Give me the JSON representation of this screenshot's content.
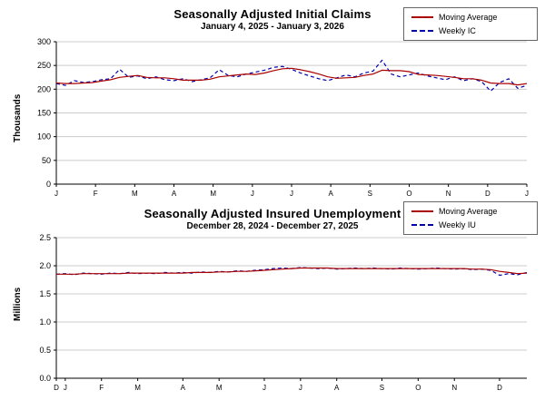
{
  "chart_data": [
    {
      "type": "line",
      "title": "Seasonally Adjusted Initial Claims",
      "subtitle": "January 4, 2025 - January 3, 2026",
      "ylabel": "Thousands",
      "ylim": [
        0,
        300
      ],
      "y_ticks": [
        0,
        50,
        100,
        150,
        200,
        250,
        300
      ],
      "y_tick_labels": [
        "0",
        "50",
        "100",
        "150",
        "200",
        "250",
        "300"
      ],
      "grid": true,
      "legend_position": "top-right",
      "x_ticks": [
        {
          "label": "J",
          "pos": 0.0
        },
        {
          "label": "F",
          "pos": 0.0833
        },
        {
          "label": "M",
          "pos": 0.1667
        },
        {
          "label": "A",
          "pos": 0.25
        },
        {
          "label": "M",
          "pos": 0.3333
        },
        {
          "label": "J",
          "pos": 0.4167
        },
        {
          "label": "J",
          "pos": 0.5
        },
        {
          "label": "A",
          "pos": 0.5833
        },
        {
          "label": "S",
          "pos": 0.6667
        },
        {
          "label": "O",
          "pos": 0.75
        },
        {
          "label": "N",
          "pos": 0.8333
        },
        {
          "label": "D",
          "pos": 0.9167
        },
        {
          "label": "J",
          "pos": 1.0
        }
      ],
      "series": [
        {
          "name": "Moving Average",
          "style": "solid",
          "color": "#aa0000",
          "values": [
            213,
            212,
            212,
            213,
            214,
            217,
            220,
            225,
            227,
            229,
            225,
            224,
            224,
            222,
            219,
            219,
            219,
            221,
            226,
            228,
            230,
            232,
            231,
            234,
            239,
            243,
            244,
            241,
            237,
            232,
            226,
            223,
            224,
            225,
            229,
            232,
            240,
            239,
            239,
            237,
            231,
            230,
            229,
            227,
            225,
            222,
            222,
            219,
            213,
            212,
            212,
            209,
            212
          ]
        },
        {
          "name": "Weekly IC",
          "style": "dashed",
          "color": "#0000aa",
          "values": [
            212,
            208,
            218,
            214,
            216,
            220,
            222,
            242,
            225,
            228,
            222,
            226,
            220,
            218,
            222,
            216,
            220,
            224,
            241,
            229,
            226,
            232,
            236,
            240,
            246,
            248,
            242,
            234,
            228,
            222,
            218,
            224,
            230,
            226,
            234,
            238,
            261,
            232,
            226,
            230,
            234,
            228,
            224,
            220,
            226,
            218,
            222,
            216,
            196,
            214,
            222,
            202,
            208
          ]
        }
      ]
    },
    {
      "type": "line",
      "title": "Seasonally Adjusted Insured Unemployment",
      "subtitle": "December 28, 2024 - December 27, 2025",
      "ylabel": "Millions",
      "ylim": [
        0,
        2.5
      ],
      "y_ticks": [
        0,
        0.5,
        1.0,
        1.5,
        2.0,
        2.5
      ],
      "y_tick_labels": [
        "0.0",
        "0.5",
        "1.0",
        "1.5",
        "2.0",
        "2.5"
      ],
      "grid": true,
      "legend_position": "top-right",
      "x_ticks": [
        {
          "label": "D",
          "pos": 0.0
        },
        {
          "label": "J",
          "pos": 0.019
        },
        {
          "label": "F",
          "pos": 0.096
        },
        {
          "label": "M",
          "pos": 0.173
        },
        {
          "label": "A",
          "pos": 0.269
        },
        {
          "label": "M",
          "pos": 0.346
        },
        {
          "label": "J",
          "pos": 0.442
        },
        {
          "label": "J",
          "pos": 0.519
        },
        {
          "label": "A",
          "pos": 0.596
        },
        {
          "label": "S",
          "pos": 0.692
        },
        {
          "label": "O",
          "pos": 0.769
        },
        {
          "label": "N",
          "pos": 0.846
        },
        {
          "label": "D",
          "pos": 0.942
        }
      ],
      "series": [
        {
          "name": "Moving Average",
          "style": "solid",
          "color": "#aa0000",
          "values": [
            1.85,
            1.85,
            1.85,
            1.86,
            1.86,
            1.86,
            1.86,
            1.86,
            1.87,
            1.87,
            1.87,
            1.87,
            1.87,
            1.87,
            1.87,
            1.88,
            1.88,
            1.88,
            1.89,
            1.89,
            1.9,
            1.9,
            1.91,
            1.92,
            1.93,
            1.94,
            1.95,
            1.96,
            1.96,
            1.96,
            1.96,
            1.95,
            1.95,
            1.95,
            1.95,
            1.95,
            1.95,
            1.95,
            1.95,
            1.95,
            1.95,
            1.95,
            1.95,
            1.95,
            1.95,
            1.95,
            1.94,
            1.94,
            1.93,
            1.9,
            1.88,
            1.86,
            1.87
          ]
        },
        {
          "name": "Weekly IU",
          "style": "dashed",
          "color": "#0000aa",
          "values": [
            1.85,
            1.86,
            1.84,
            1.87,
            1.86,
            1.85,
            1.87,
            1.86,
            1.88,
            1.86,
            1.87,
            1.86,
            1.88,
            1.87,
            1.88,
            1.87,
            1.89,
            1.88,
            1.9,
            1.89,
            1.91,
            1.9,
            1.92,
            1.93,
            1.95,
            1.96,
            1.95,
            1.97,
            1.96,
            1.95,
            1.96,
            1.94,
            1.95,
            1.96,
            1.95,
            1.96,
            1.95,
            1.94,
            1.96,
            1.95,
            1.94,
            1.95,
            1.96,
            1.95,
            1.94,
            1.95,
            1.93,
            1.94,
            1.92,
            1.83,
            1.86,
            1.84,
            1.88
          ]
        }
      ]
    }
  ]
}
